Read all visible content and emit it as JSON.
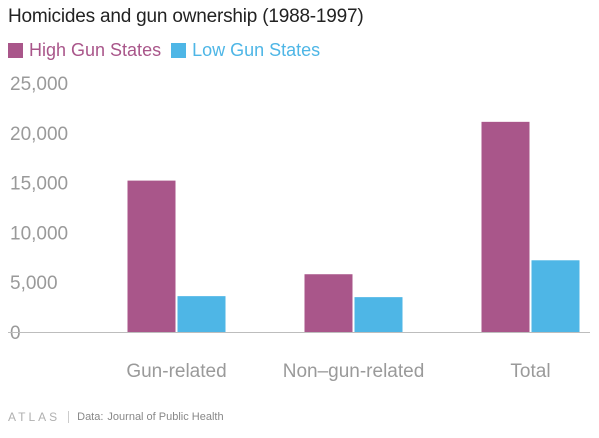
{
  "title": "Homicides and gun ownership (1988-1997)",
  "colors": {
    "high": "#a9568a",
    "low": "#4eb6e6",
    "axis_text": "#9a9a9a",
    "grid": "#d9d9d9"
  },
  "legend": [
    {
      "label": "High Gun States",
      "color": "#a9568a"
    },
    {
      "label": "Low Gun States",
      "color": "#4eb6e6"
    }
  ],
  "chart_data": {
    "type": "bar",
    "title": "Homicides and gun ownership (1988-1997)",
    "categories": [
      "Gun-related",
      "Non–gun-related",
      "Total"
    ],
    "series": [
      {
        "name": "High Gun States",
        "values": [
          15200,
          5800,
          21100
        ]
      },
      {
        "name": "Low Gun States",
        "values": [
          3600,
          3500,
          7200
        ]
      }
    ],
    "y_ticks": [
      "0",
      "5,000",
      "10,000",
      "15,000",
      "20,000",
      "25,000"
    ],
    "ylim": [
      0,
      25000
    ],
    "grid": false,
    "legend_position": "top-left"
  },
  "footer": {
    "logo": "ATLAS",
    "source_label": "Data:",
    "source": "Journal of Public Health"
  }
}
